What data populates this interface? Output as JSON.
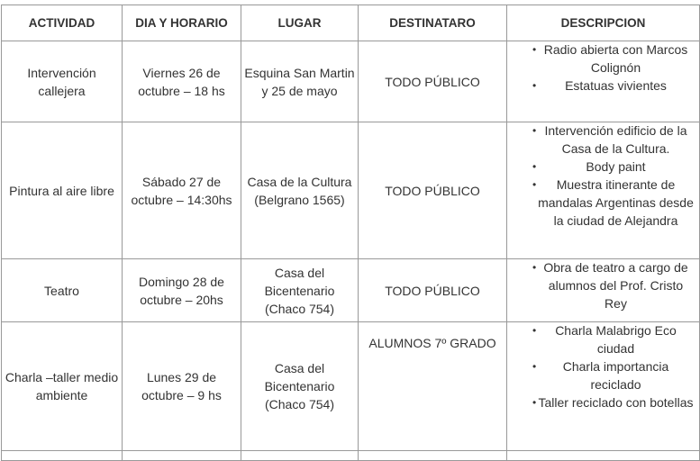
{
  "headers": [
    "ACTIVIDAD",
    "DIA Y HORARIO",
    "LUGAR",
    "DESTINATARO",
    "DESCRIPCION"
  ],
  "rows": [
    {
      "actividad": "Intervención callejera",
      "dia": "Viernes 26 de octubre – 18 hs",
      "lugar": "Esquina San Martin y 25 de mayo",
      "destinatario": "TODO PÚBLICO",
      "descripcion": [
        "Radio abierta con Marcos Colignón",
        "Estatuas vivientes"
      ]
    },
    {
      "actividad": "Pintura al aire libre",
      "dia": "Sábado 27 de octubre – 14:30hs",
      "lugar": "Casa de la Cultura (Belgrano 1565)",
      "destinatario": "TODO PÚBLICO",
      "descripcion": [
        "Intervención edificio de la Casa de la Cultura.",
        "Body paint",
        "Muestra itinerante de mandalas Argentinas desde la ciudad de Alejandra"
      ]
    },
    {
      "actividad": "Teatro",
      "dia": "Domingo 28 de octubre – 20hs",
      "lugar": "Casa del Bicentenario (Chaco 754)",
      "destinatario": "TODO PÚBLICO",
      "descripcion": [
        "Obra de teatro a cargo de alumnos del Prof. Cristo Rey"
      ]
    },
    {
      "actividad": "Charla –taller medio ambiente",
      "dia": "Lunes 29 de octubre – 9 hs",
      "lugar": "Casa del Bicentenario (Chaco 754)",
      "destinatario": "ALUMNOS 7º GRADO",
      "descripcion": [
        "Charla Malabrigo Eco ciudad",
        "Charla importancia reciclado",
        "Taller reciclado con botellas"
      ]
    }
  ]
}
